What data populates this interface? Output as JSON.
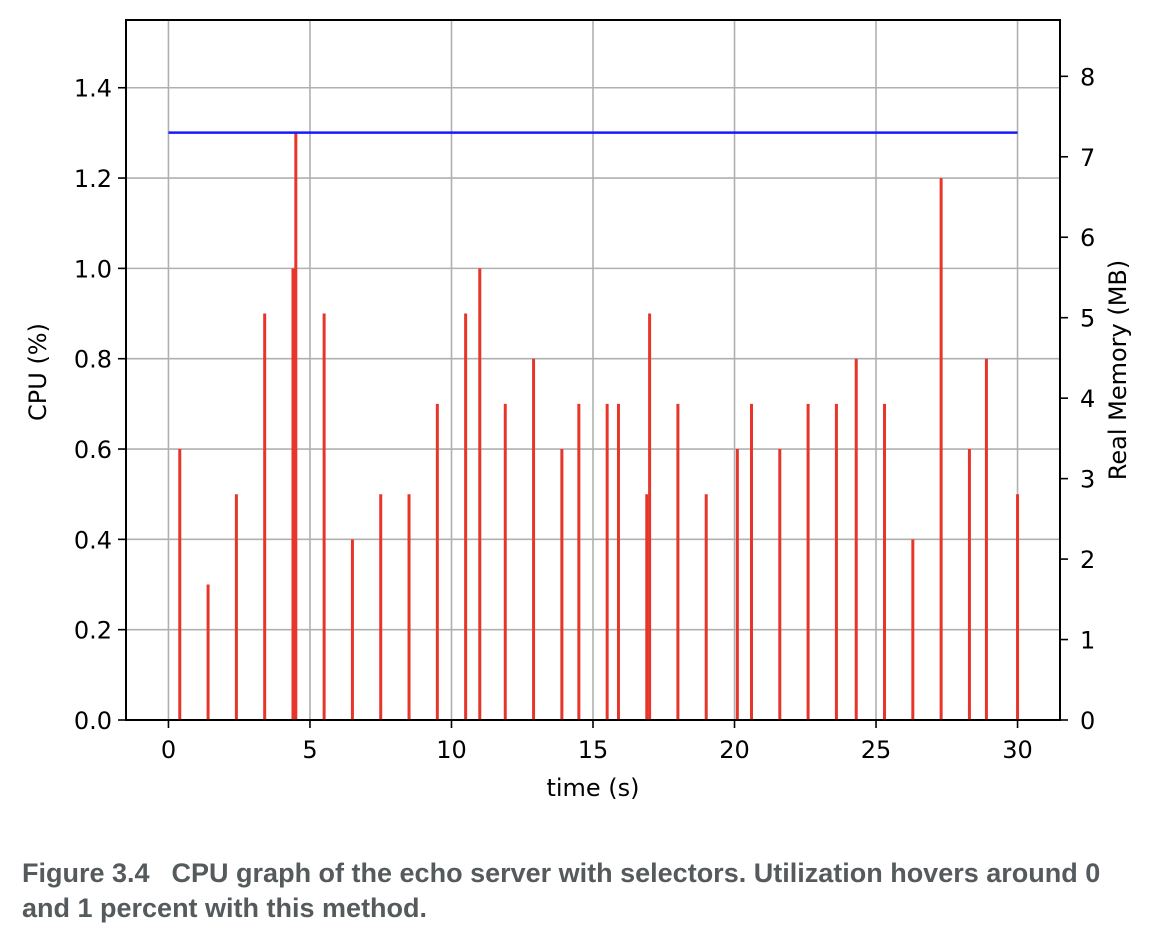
{
  "chart_data": {
    "type": "line",
    "xlabel": "time (s)",
    "ylabel": "CPU (%)",
    "y2label": "Real Memory (MB)",
    "xlim": [
      -1.5,
      31.5
    ],
    "ylim": [
      0.0,
      1.55
    ],
    "y2lim": [
      0,
      8.7
    ],
    "xticks": [
      0,
      5,
      10,
      15,
      20,
      25,
      30
    ],
    "yticks": [
      0.0,
      0.2,
      0.4,
      0.6,
      0.8,
      1.0,
      1.2,
      1.4
    ],
    "y2ticks": [
      0,
      1,
      2,
      3,
      4,
      5,
      6,
      7,
      8
    ],
    "grid": true,
    "colors": {
      "cpu": "#e8352a",
      "memory": "#1a1aff",
      "axis_label_cpu": "#e8352a",
      "axis_label_memory": "#1a1aff"
    },
    "series": [
      {
        "axis": "left",
        "color": "#e8352a",
        "style": "spikes",
        "x": [
          0.4,
          1.4,
          2.4,
          3.4,
          4.4,
          4.5,
          5.5,
          6.5,
          7.5,
          8.5,
          9.5,
          10.5,
          11.0,
          11.9,
          12.9,
          13.9,
          14.5,
          15.5,
          15.9,
          16.9,
          17.0,
          18.0,
          19.0,
          20.1,
          20.6,
          21.6,
          22.6,
          23.6,
          24.3,
          25.3,
          26.3,
          27.3,
          28.3,
          28.9,
          30.0
        ],
        "y": [
          0.6,
          0.3,
          0.5,
          0.9,
          1.0,
          1.3,
          0.9,
          0.4,
          0.5,
          0.5,
          0.7,
          0.9,
          1.0,
          0.7,
          0.8,
          0.6,
          0.7,
          0.7,
          0.7,
          0.5,
          0.9,
          0.7,
          0.5,
          0.6,
          0.7,
          0.6,
          0.7,
          0.7,
          0.8,
          0.7,
          0.4,
          1.2,
          0.6,
          0.8,
          0.5
        ]
      },
      {
        "axis": "right",
        "color": "#1a1aff",
        "style": "line",
        "x": [
          0,
          30
        ],
        "y": [
          7.3,
          7.3
        ]
      }
    ]
  },
  "caption": {
    "figure_number": "Figure 3.4",
    "text": "CPU graph of the echo server with selectors. Utilization hovers around 0 and 1 percent with this method."
  }
}
